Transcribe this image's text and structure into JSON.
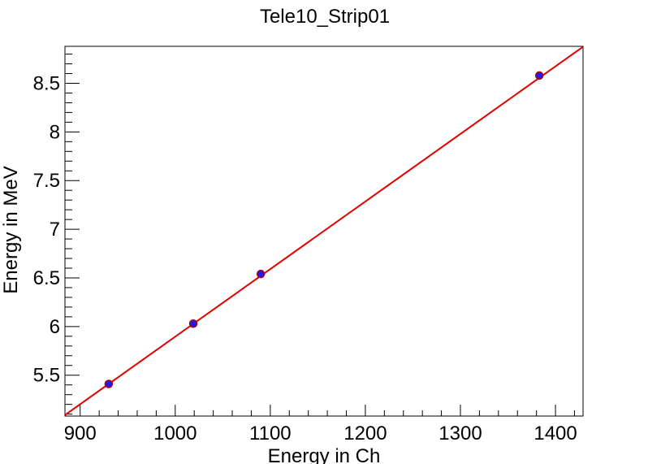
{
  "chart_data": {
    "type": "scatter",
    "title": "Tele10_Strip01",
    "xlabel": "Energy in Ch",
    "ylabel": "Energy in MeV",
    "xlim": [
      884,
      1429
    ],
    "ylim": [
      5.08,
      8.88
    ],
    "x_ticks": [
      900,
      1000,
      1100,
      1200,
      1300,
      1400
    ],
    "x_tick_labels": [
      "900",
      "1000",
      "1100",
      "1200",
      "1300",
      "1400"
    ],
    "x_minor_step": 20,
    "y_ticks": [
      5.5,
      6,
      6.5,
      7,
      7.5,
      8,
      8.5
    ],
    "y_tick_labels": [
      "5.5",
      "6",
      "6.5",
      "7",
      "7.5",
      "8",
      "8.5"
    ],
    "y_minor_step": 0.1,
    "grid": false,
    "legend": "none",
    "series": [
      {
        "x": [
          930,
          1019,
          1090,
          1383
        ],
        "y": [
          5.41,
          6.03,
          6.54,
          8.58
        ]
      }
    ],
    "fit_line": {
      "slope": 0.006945,
      "intercept": -1.049
    },
    "colors": {
      "marker_fill": "#1a1aff",
      "marker_edge": "#b00000",
      "fit_line": "#e00000",
      "axes": "#000000"
    }
  }
}
